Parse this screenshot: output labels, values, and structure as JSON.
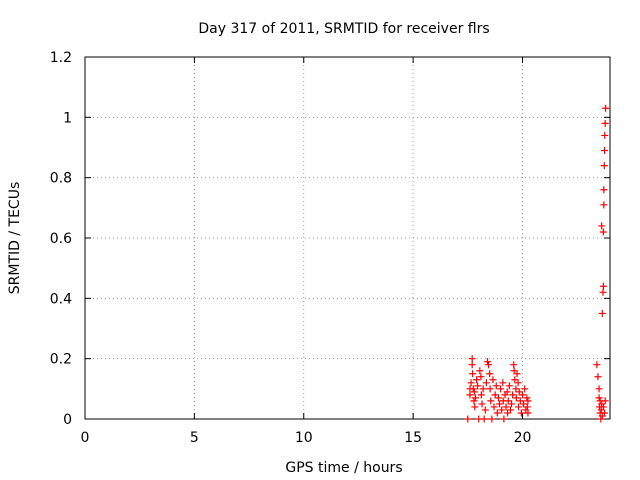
{
  "chart_data": {
    "type": "scatter",
    "title": "Day 317 of 2011, SRMTID for receiver flrs",
    "xlabel": "GPS time / hours",
    "ylabel": "SRMTID / TECUs",
    "xlim": [
      0,
      24
    ],
    "ylim": [
      0,
      1.2
    ],
    "xticks": [
      0,
      5,
      10,
      15,
      20
    ],
    "xtick_labels": [
      "0",
      "5",
      "10",
      "15",
      "20"
    ],
    "yticks": [
      0,
      0.2,
      0.4,
      0.6,
      0.8,
      1,
      1.2
    ],
    "ytick_labels": [
      "0",
      "0.2",
      "0.4",
      "0.6",
      "0.8",
      "1",
      "1.2"
    ],
    "grid": true,
    "marker": "+",
    "color": "#ff0000",
    "series": [
      {
        "name": "SRMTID",
        "points": [
          [
            17.5,
            0.0
          ],
          [
            17.6,
            0.1
          ],
          [
            17.6,
            0.08
          ],
          [
            17.65,
            0.12
          ],
          [
            17.7,
            0.2
          ],
          [
            17.7,
            0.18
          ],
          [
            17.72,
            0.15
          ],
          [
            17.75,
            0.1
          ],
          [
            17.78,
            0.06
          ],
          [
            17.8,
            0.09
          ],
          [
            17.82,
            0.04
          ],
          [
            17.85,
            0.07
          ],
          [
            17.9,
            0.13
          ],
          [
            17.95,
            0.11
          ],
          [
            18.0,
            0.0
          ],
          [
            18.05,
            0.16
          ],
          [
            18.1,
            0.14
          ],
          [
            18.12,
            0.08
          ],
          [
            18.15,
            0.05
          ],
          [
            18.2,
            0.1
          ],
          [
            18.25,
            0.0
          ],
          [
            18.3,
            0.03
          ],
          [
            18.35,
            0.12
          ],
          [
            18.4,
            0.19
          ],
          [
            18.45,
            0.18
          ],
          [
            18.5,
            0.15
          ],
          [
            18.52,
            0.1
          ],
          [
            18.55,
            0.06
          ],
          [
            18.6,
            0.0
          ],
          [
            18.65,
            0.13
          ],
          [
            18.7,
            0.04
          ],
          [
            18.75,
            0.08
          ],
          [
            18.8,
            0.11
          ],
          [
            18.85,
            0.02
          ],
          [
            18.9,
            0.07
          ],
          [
            18.95,
            0.05
          ],
          [
            19.0,
            0.1
          ],
          [
            19.05,
            0.03
          ],
          [
            19.1,
            0.12
          ],
          [
            19.12,
            0.06
          ],
          [
            19.15,
            0.0
          ],
          [
            19.2,
            0.08
          ],
          [
            19.25,
            0.04
          ],
          [
            19.3,
            0.09
          ],
          [
            19.32,
            0.02
          ],
          [
            19.35,
            0.06
          ],
          [
            19.4,
            0.11
          ],
          [
            19.45,
            0.03
          ],
          [
            19.5,
            0.05
          ],
          [
            19.55,
            0.08
          ],
          [
            19.6,
            0.18
          ],
          [
            19.62,
            0.16
          ],
          [
            19.65,
            0.13
          ],
          [
            19.7,
            0.1
          ],
          [
            19.72,
            0.07
          ],
          [
            19.75,
            0.15
          ],
          [
            19.8,
            0.12
          ],
          [
            19.82,
            0.04
          ],
          [
            19.85,
            0.09
          ],
          [
            19.9,
            0.06
          ],
          [
            19.95,
            0.02
          ],
          [
            20.0,
            0.08
          ],
          [
            20.05,
            0.05
          ],
          [
            20.1,
            0.1
          ],
          [
            20.15,
            0.03
          ],
          [
            20.2,
            0.07
          ],
          [
            20.22,
            0.04
          ],
          [
            20.25,
            0.02
          ],
          [
            20.25,
            0.06
          ],
          [
            23.4,
            0.18
          ],
          [
            23.45,
            0.14
          ],
          [
            23.5,
            0.1
          ],
          [
            23.5,
            0.07
          ],
          [
            23.52,
            0.04
          ],
          [
            23.55,
            0.02
          ],
          [
            23.55,
            0.06
          ],
          [
            23.58,
            0.0
          ],
          [
            23.6,
            0.03
          ],
          [
            23.62,
            0.05
          ],
          [
            23.62,
            0.64
          ],
          [
            23.65,
            0.01
          ],
          [
            23.65,
            0.35
          ],
          [
            23.68,
            0.42
          ],
          [
            23.7,
            0.44
          ],
          [
            23.7,
            0.62
          ],
          [
            23.72,
            0.71
          ],
          [
            23.72,
            0.76
          ],
          [
            23.74,
            0.84
          ],
          [
            23.75,
            0.89
          ],
          [
            23.76,
            0.94
          ],
          [
            23.78,
            0.98
          ],
          [
            23.8,
            1.03
          ],
          [
            23.7,
            0.04
          ],
          [
            23.75,
            0.02
          ],
          [
            23.78,
            0.06
          ]
        ]
      }
    ]
  }
}
